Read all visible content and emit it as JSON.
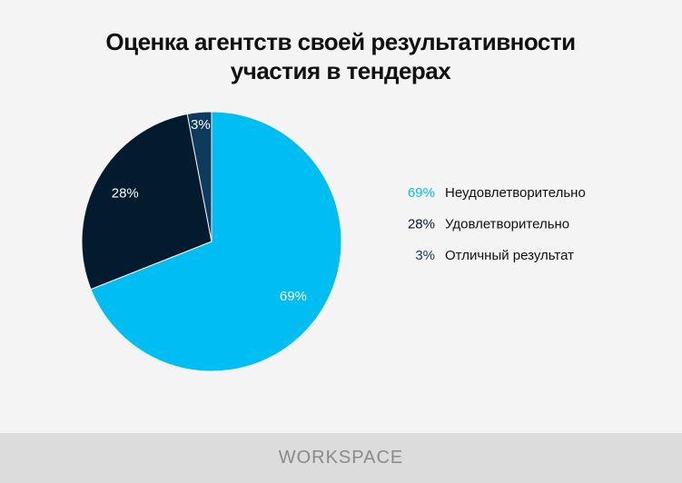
{
  "chart_data": {
    "type": "pie",
    "title": "Оценка агентств своей результативности участия в тендерах",
    "categories": [
      "Неудовлетворительно",
      "Удовлетворительно",
      "Отличный результат"
    ],
    "values": [
      69,
      28,
      3
    ],
    "value_labels": [
      "69%",
      "28%",
      "3%"
    ],
    "colors": [
      "#00bdf2",
      "#021b2e",
      "#0e3a5e"
    ],
    "legend": "right"
  },
  "footer": "WORKSPACE"
}
